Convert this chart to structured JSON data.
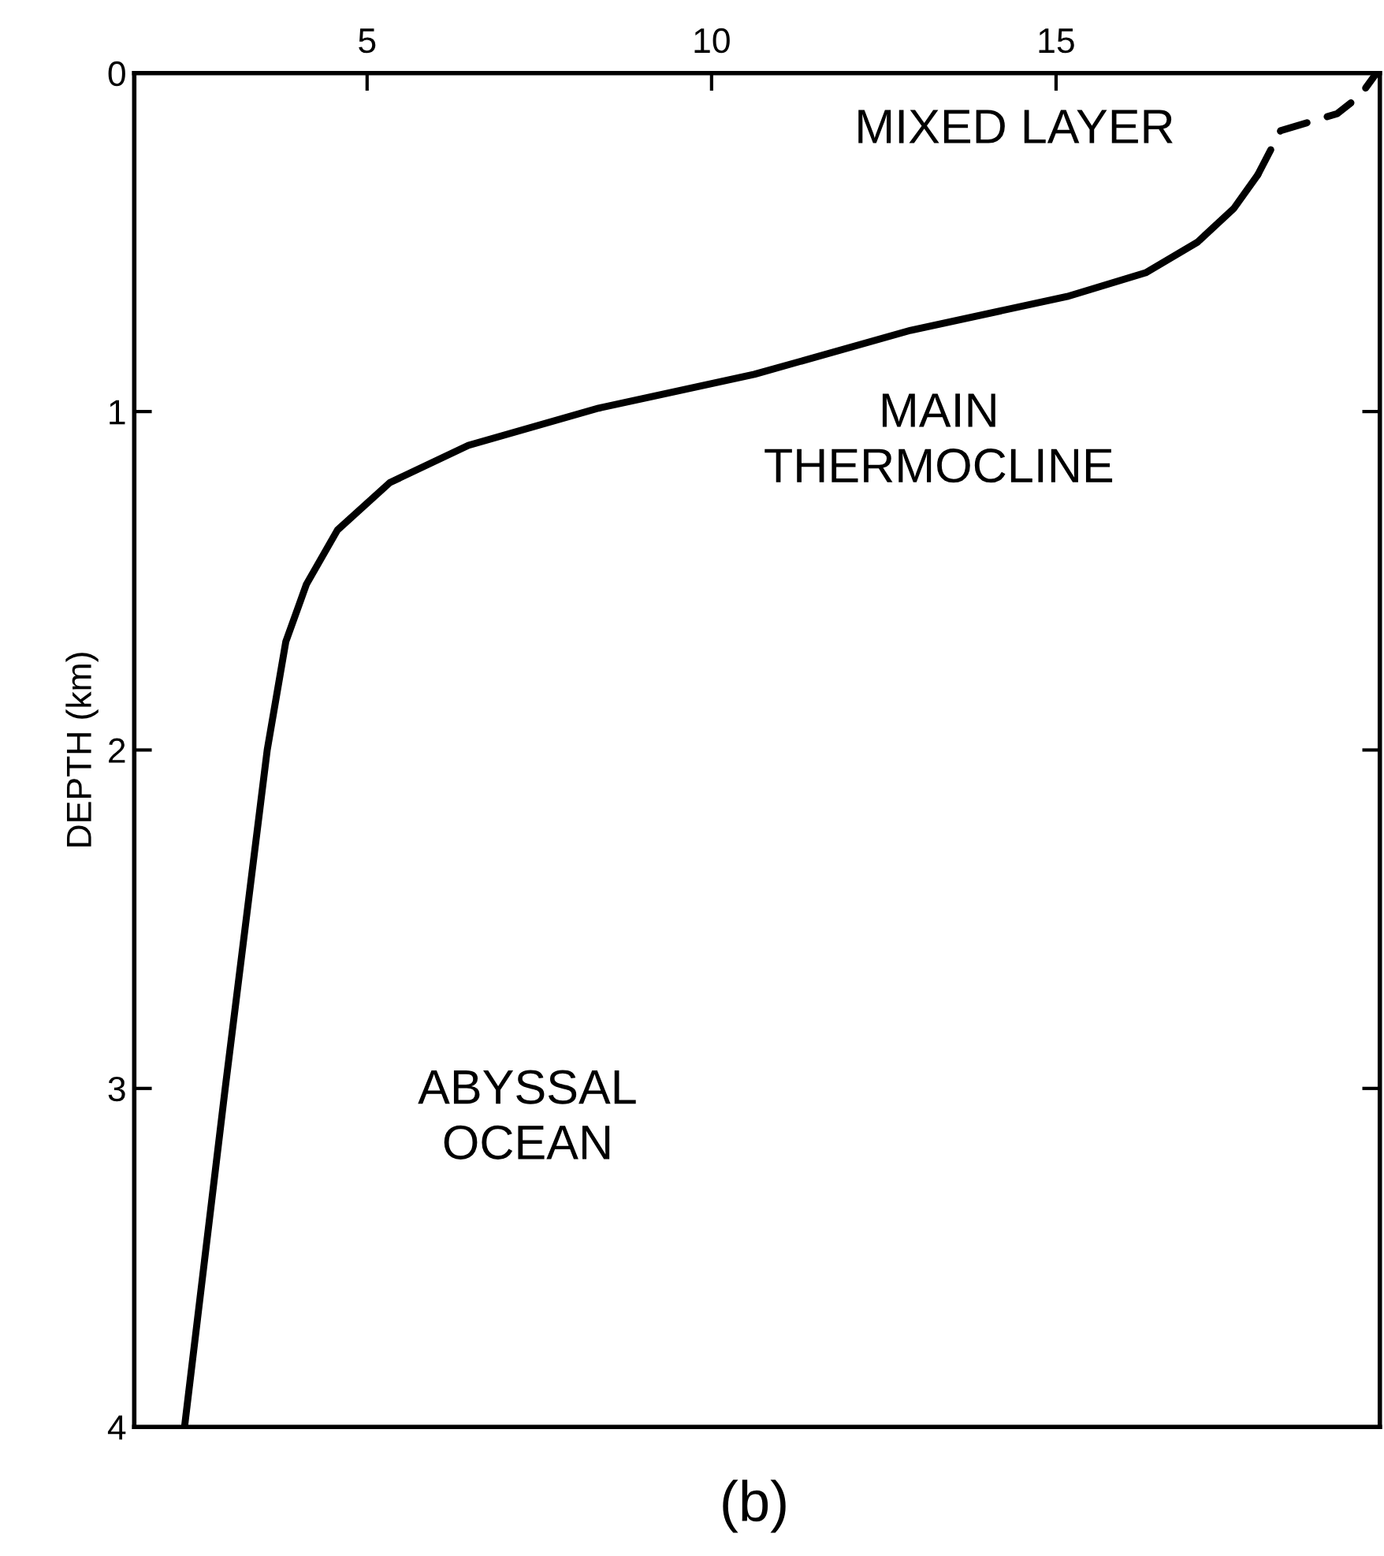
{
  "chart_data": {
    "type": "line",
    "ylabel": "DEPTH (km)",
    "series": [
      {
        "color": "#000000",
        "line_style": "solid",
        "x": [
          2.35,
          2.94,
          3.55,
          3.82,
          4.12,
          4.57,
          5.33,
          6.47,
          8.36,
          10.62,
          12.89,
          15.16,
          16.3,
          17.05,
          17.58,
          17.93
        ],
        "values": [
          4.0,
          3.0,
          2.0,
          1.68,
          1.51,
          1.35,
          1.21,
          1.1,
          0.99,
          0.89,
          0.76,
          0.66,
          0.59,
          0.5,
          0.4,
          0.3
        ]
      },
      {
        "color": "#000000",
        "line_style": "dashed",
        "x": [
          17.93,
          18.26,
          19.08,
          19.42,
          19.65
        ],
        "values": [
          0.3,
          0.17,
          0.12,
          0.065,
          0.0
        ]
      }
    ],
    "xlim": [
      1.62,
      19.7
    ],
    "xticks": [
      5,
      10,
      15
    ],
    "ylim": [
      4,
      0
    ],
    "yticks": [
      0,
      1,
      2,
      3,
      4
    ],
    "grid": false,
    "legend": false,
    "marker": "none",
    "annotations": [
      "MIXED LAYER",
      "MAIN\nTHERMOCLINE",
      "ABYSSAL\nOCEAN",
      "(b)"
    ]
  }
}
